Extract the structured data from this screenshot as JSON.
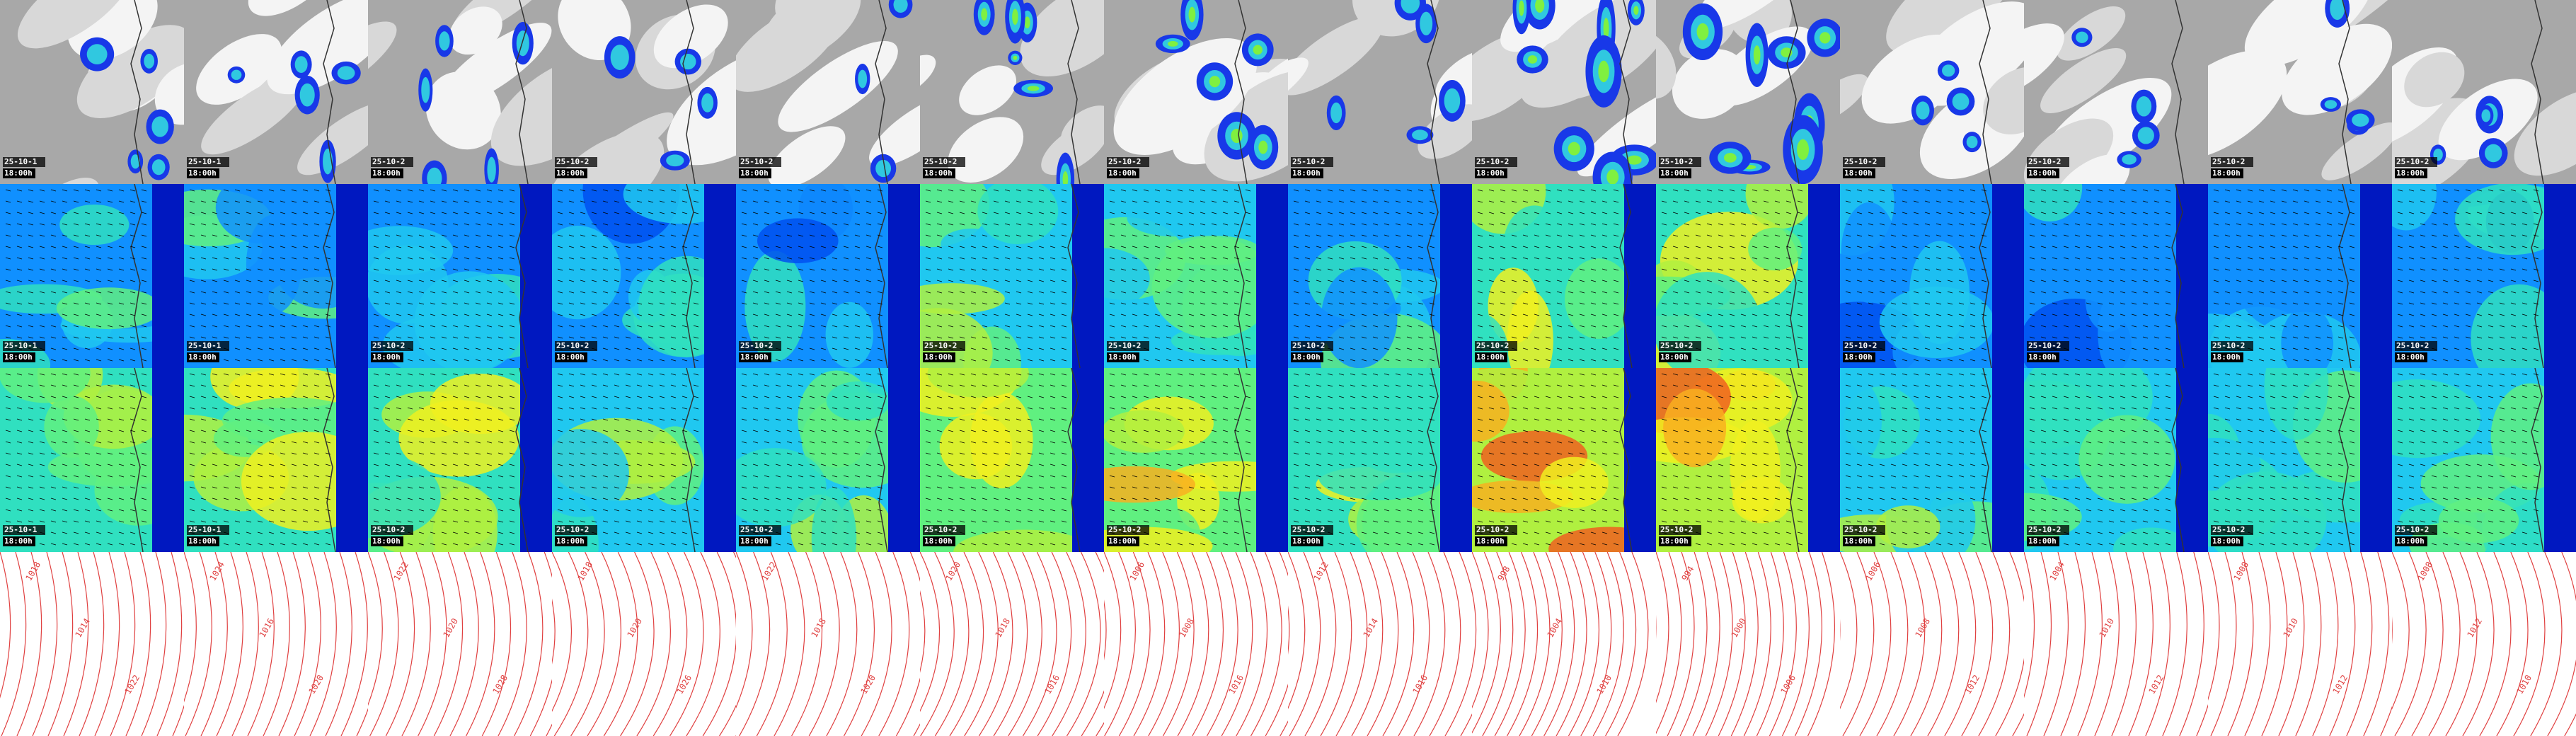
{
  "tile_rows": [
    [
      {
        "date": "25-10-1",
        "time": "18:00h"
      },
      {
        "date": "25-10-1",
        "time": "18:00h"
      },
      {
        "date": "25-10-2",
        "time": "18:00h"
      },
      {
        "date": "25-10-2",
        "time": "18:00h"
      },
      {
        "date": "25-10-2",
        "time": "18:00h"
      },
      {
        "date": "25-10-2",
        "time": "18:00h"
      },
      {
        "date": "25-10-2",
        "time": "18:00h"
      },
      {
        "date": "25-10-2",
        "time": "18:00h"
      },
      {
        "date": "25-10-2",
        "time": "18:00h"
      },
      {
        "date": "25-10-2",
        "time": "18:00h"
      },
      {
        "date": "25-10-2",
        "time": "18:00h"
      },
      {
        "date": "25-10-2",
        "time": "18:00h"
      },
      {
        "date": "25-10-2",
        "time": "18:00h"
      },
      {
        "date": "25-10-2",
        "time": "18:00h"
      }
    ],
    [
      {
        "date": "25-10-1",
        "time": "18:00h"
      },
      {
        "date": "25-10-1",
        "time": "18:00h"
      },
      {
        "date": "25-10-2",
        "time": "18:00h"
      },
      {
        "date": "25-10-2",
        "time": "18:00h"
      },
      {
        "date": "25-10-2",
        "time": "18:00h"
      },
      {
        "date": "25-10-2",
        "time": "18:00h"
      },
      {
        "date": "25-10-2",
        "time": "18:00h"
      },
      {
        "date": "25-10-2",
        "time": "18:00h"
      },
      {
        "date": "25-10-2",
        "time": "18:00h"
      },
      {
        "date": "25-10-2",
        "time": "18:00h"
      },
      {
        "date": "25-10-2",
        "time": "18:00h"
      },
      {
        "date": "25-10-2",
        "time": "18:00h"
      },
      {
        "date": "25-10-2",
        "time": "18:00h"
      },
      {
        "date": "25-10-2",
        "time": "18:00h"
      }
    ],
    [
      {
        "date": "25-10-1",
        "time": "18:00h"
      },
      {
        "date": "25-10-1",
        "time": "18:00h"
      },
      {
        "date": "25-10-2",
        "time": "18:00h"
      },
      {
        "date": "25-10-2",
        "time": "18:00h"
      },
      {
        "date": "25-10-2",
        "time": "18:00h"
      },
      {
        "date": "25-10-2",
        "time": "18:00h"
      },
      {
        "date": "25-10-2",
        "time": "18:00h"
      },
      {
        "date": "25-10-2",
        "time": "18:00h"
      },
      {
        "date": "25-10-2",
        "time": "18:00h"
      },
      {
        "date": "25-10-2",
        "time": "18:00h"
      },
      {
        "date": "25-10-2",
        "time": "18:00h"
      },
      {
        "date": "25-10-2",
        "time": "18:00h"
      },
      {
        "date": "25-10-2",
        "time": "18:00h"
      },
      {
        "date": "25-10-2",
        "time": "18:00h"
      }
    ]
  ],
  "isobar_labels": [
    [
      "1018",
      "1014",
      "1022"
    ],
    [
      "1024",
      "1016",
      "1020"
    ],
    [
      "1022",
      "1020",
      "1028"
    ],
    [
      "1018",
      "1020",
      "1026"
    ],
    [
      "1022",
      "1018",
      "1020"
    ],
    [
      "1020",
      "1018",
      "1016"
    ],
    [
      "1006",
      "1008",
      "1016"
    ],
    [
      "1012",
      "1014",
      "1016"
    ],
    [
      "998",
      "1004",
      "1010"
    ],
    [
      "994",
      "1000",
      "1006"
    ],
    [
      "1006",
      "1008",
      "1012"
    ],
    [
      "1004",
      "1010",
      "1012"
    ],
    [
      "1008",
      "1010",
      "1012"
    ],
    [
      "1008",
      "1012",
      "1010"
    ]
  ]
}
